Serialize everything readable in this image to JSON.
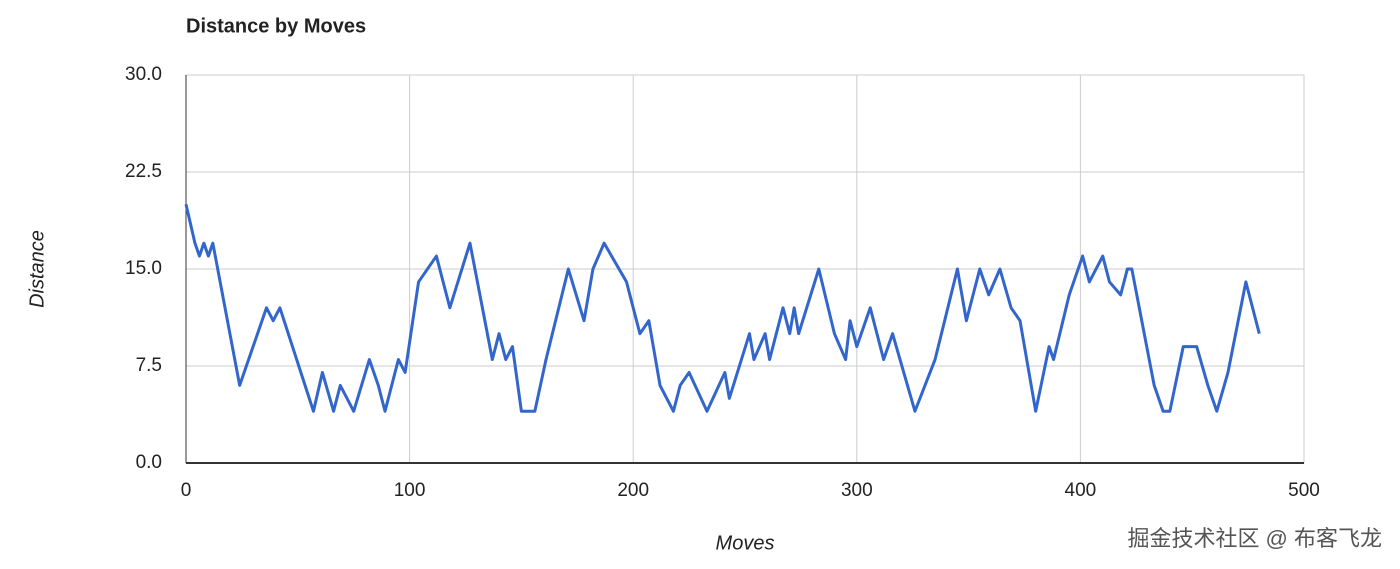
{
  "chart_data": {
    "type": "line",
    "title": "Distance by Moves",
    "x_label": "Moves",
    "y_label": "Distance",
    "x": [
      0,
      4,
      6,
      8,
      10,
      12,
      24,
      36,
      39,
      42,
      57,
      61,
      66,
      69,
      72,
      75,
      82,
      86,
      89,
      95,
      98,
      104,
      112,
      118,
      127,
      137,
      140,
      143,
      146,
      150,
      156,
      161,
      171,
      178,
      182,
      187,
      197,
      203,
      207,
      212,
      218,
      221,
      225,
      233,
      241,
      243,
      252,
      254,
      259,
      261,
      267,
      270,
      272,
      274,
      283,
      290,
      295,
      297,
      300,
      306,
      312,
      316,
      326,
      335,
      345,
      349,
      355,
      359,
      364,
      369,
      373,
      380,
      386,
      388,
      395,
      401,
      404,
      410,
      413,
      418,
      421,
      423,
      433,
      437,
      440,
      446,
      452,
      457,
      461,
      466,
      474,
      477,
      480
    ],
    "series": [
      {
        "name": "Distance",
        "color": "#3366cc",
        "values": [
          20,
          17,
          16,
          17,
          16,
          17,
          6,
          12,
          11,
          12,
          4,
          7,
          4,
          6,
          5,
          4,
          8,
          6,
          4,
          8,
          7,
          14,
          16,
          12,
          17,
          8,
          10,
          8,
          9,
          4,
          4,
          8,
          15,
          11,
          15,
          17,
          14,
          10,
          11,
          6,
          4,
          6,
          7,
          4,
          7,
          5,
          10,
          8,
          10,
          8,
          12,
          10,
          12,
          10,
          15,
          10,
          8,
          11,
          9,
          12,
          8,
          10,
          4,
          8,
          15,
          11,
          15,
          13,
          15,
          12,
          11,
          4,
          9,
          8,
          13,
          16,
          14,
          16,
          14,
          13,
          15,
          15,
          6,
          4,
          4,
          9,
          9,
          6,
          4,
          7,
          14,
          12,
          10
        ]
      }
    ],
    "xlim": [
      0,
      500
    ],
    "xticks": [
      0,
      100,
      200,
      300,
      400,
      500
    ],
    "ylim": [
      0,
      30
    ],
    "yticks": [
      {
        "value": 0,
        "label": "0.0"
      },
      7.5,
      {
        "value": 15,
        "label": "15.0"
      },
      22.5,
      {
        "value": 30,
        "label": "30.0"
      }
    ],
    "grid": true
  },
  "watermark": "掘金技术社区 @ 布客飞龙"
}
